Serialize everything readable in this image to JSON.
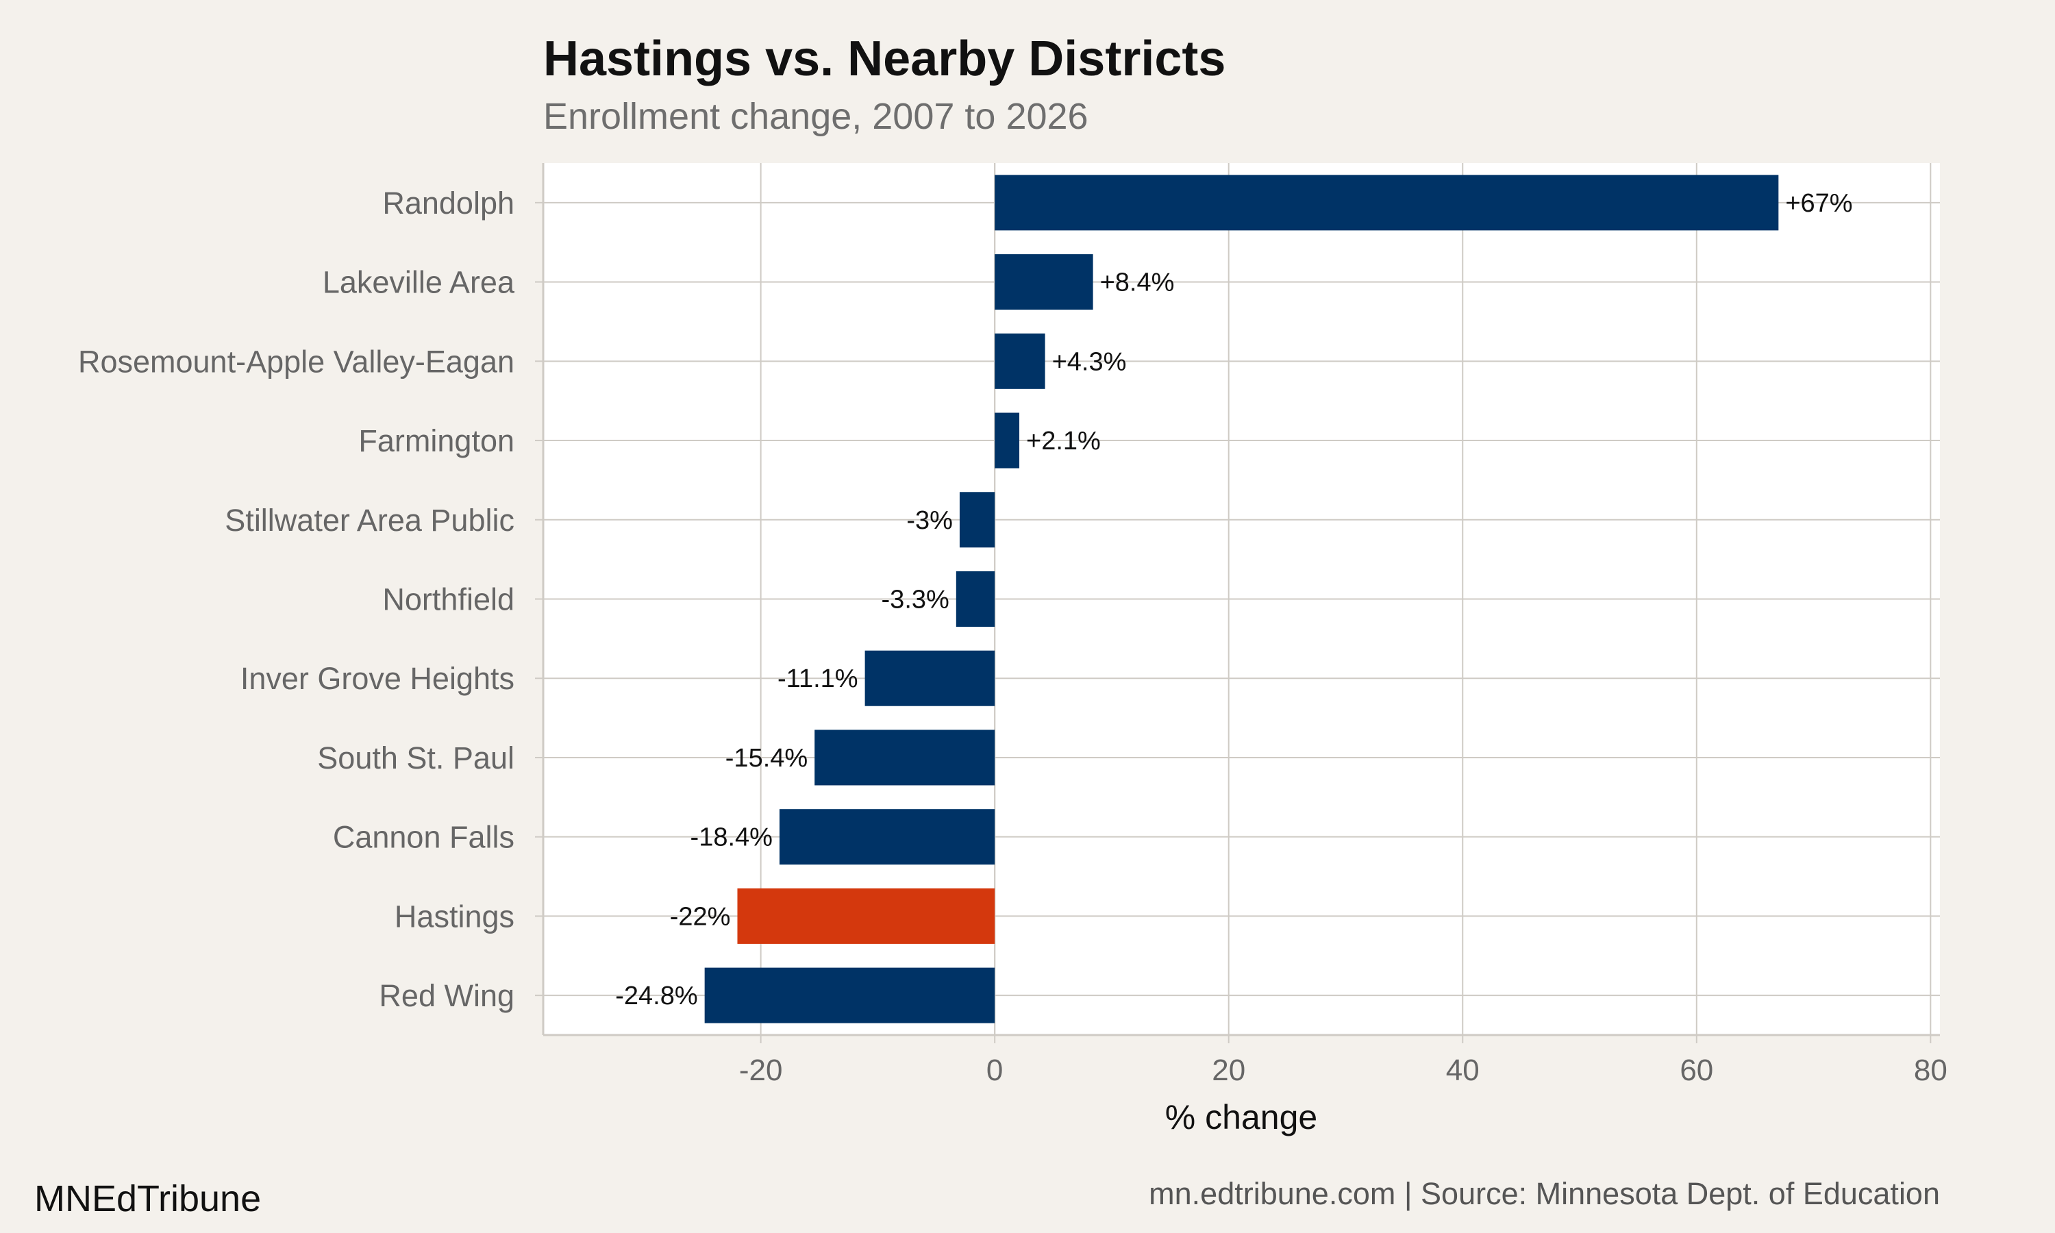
{
  "colors": {
    "background": "#f4f1ec",
    "panel": "#ffffff",
    "grid": "#cfcbc5",
    "bar_default": "#003366",
    "bar_highlight": "#d4380d"
  },
  "footer": {
    "brand": "MNEdTribune",
    "source": "mn.edtribune.com | Source: Minnesota Dept. of Education"
  },
  "chart_data": {
    "type": "bar",
    "orientation": "horizontal",
    "title": "Hastings vs. Nearby Districts",
    "subtitle": "Enrollment change, 2007 to 2026",
    "xlabel": "% change",
    "ylabel": "",
    "xlim": [
      -38.6,
      80.8
    ],
    "xticks": [
      -20,
      0,
      20,
      40,
      60,
      80
    ],
    "xtick_labels": [
      "-20",
      "0",
      "20",
      "40",
      "60",
      "80"
    ],
    "grid": true,
    "categories": [
      "Randolph",
      "Lakeville Area",
      "Rosemount-Apple Valley-Eagan",
      "Farmington",
      "Stillwater Area Public",
      "Northfield",
      "Inver Grove Heights",
      "South St. Paul",
      "Cannon Falls",
      "Hastings",
      "Red Wing"
    ],
    "values": [
      67,
      8.4,
      4.3,
      2.1,
      -3,
      -3.3,
      -11.1,
      -15.4,
      -18.4,
      -22,
      -24.8
    ],
    "labels": [
      "+67%",
      "+8.4%",
      "+4.3%",
      "+2.1%",
      "-3%",
      "-3.3%",
      "-11.1%",
      "-15.4%",
      "-18.4%",
      "-22%",
      "-24.8%"
    ],
    "highlight": "Hastings"
  }
}
